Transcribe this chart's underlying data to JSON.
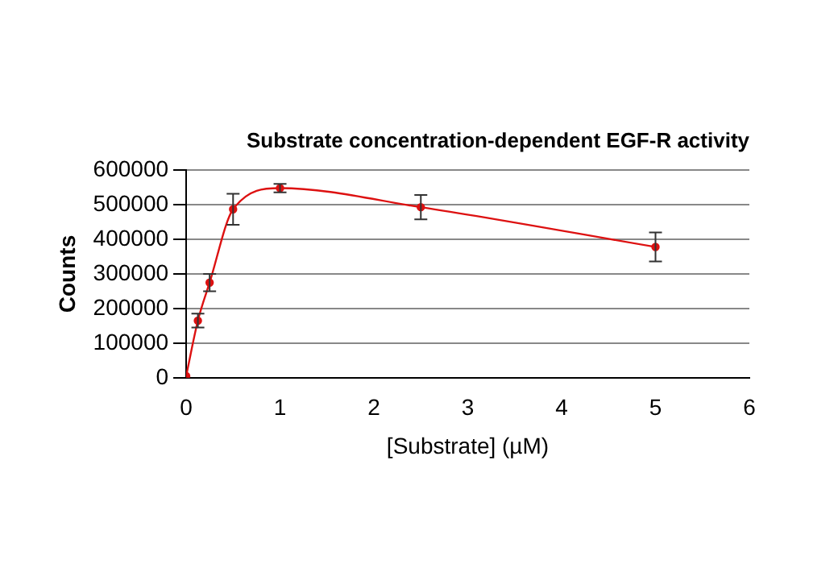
{
  "chart_data": {
    "type": "line",
    "title": "Substrate concentration-dependent EGF-R activity",
    "xlabel": "[Substrate] (µM)",
    "ylabel": "Counts",
    "x": [
      0,
      0.125,
      0.25,
      0.5,
      1,
      2.5,
      5
    ],
    "series": [
      {
        "color": "#dd1111",
        "values": [
          5000,
          165000,
          275000,
          487000,
          548000,
          493000,
          378000
        ],
        "errors": [
          null,
          20000,
          25000,
          45000,
          12000,
          35000,
          42000
        ]
      }
    ],
    "xlim": [
      0,
      6
    ],
    "xticks": [
      0,
      1,
      2,
      3,
      4,
      5,
      6
    ],
    "ylim": [
      0,
      600000
    ],
    "yticks": [
      0,
      100000,
      200000,
      300000,
      400000,
      500000,
      600000
    ],
    "grid": "y",
    "legend": false,
    "marker": "circle",
    "line_style": "solid"
  }
}
